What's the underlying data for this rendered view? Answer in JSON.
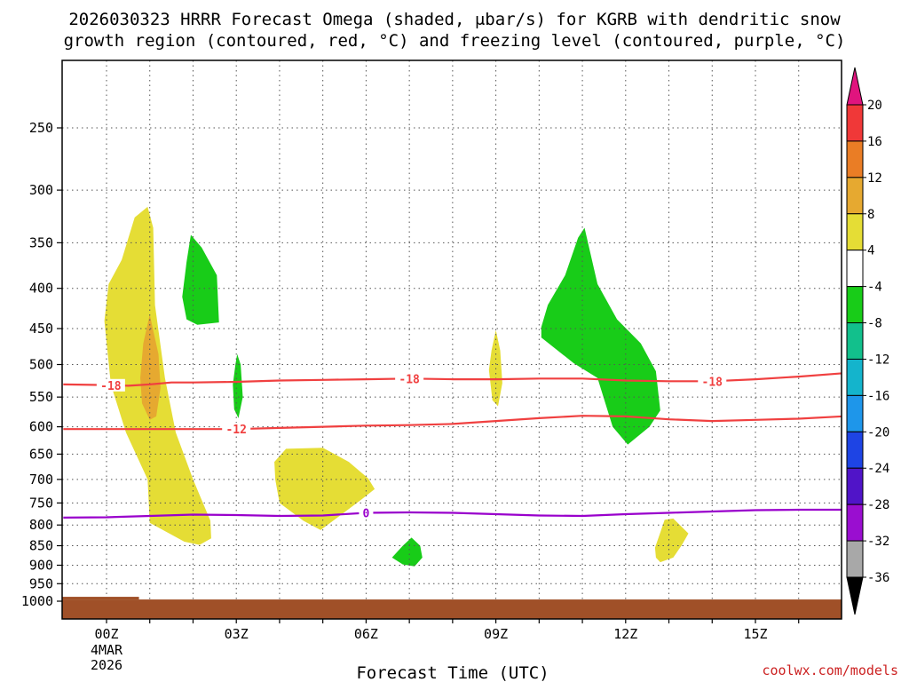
{
  "chart_data": {
    "type": "time-height",
    "title_line1": "2026030323 HRRR Forecast Omega (shaded, μbar/s) for KGRB with dendritic snow",
    "title_line2": "growth region (contoured, red, °C) and freezing level (contoured, purple, °C)",
    "xlabel": "Forecast Time (UTC)",
    "x_ticks": [
      {
        "hour": 0,
        "label": "00Z"
      },
      {
        "hour": 3,
        "label": "03Z"
      },
      {
        "hour": 6,
        "label": "06Z"
      },
      {
        "hour": 9,
        "label": "09Z"
      },
      {
        "hour": 12,
        "label": "12Z"
      },
      {
        "hour": 15,
        "label": "15Z"
      }
    ],
    "date_label_line1": "4MAR",
    "date_label_line2": "2026",
    "xlim": [
      -1,
      17
    ],
    "y_ticks": [
      250,
      300,
      350,
      400,
      450,
      500,
      550,
      600,
      650,
      700,
      750,
      800,
      850,
      900,
      950,
      1000
    ],
    "ylim_hpa": [
      200,
      1020
    ],
    "credit": "coolwx.com/models",
    "colorbar": {
      "labels": [
        "20",
        "16",
        "12",
        "8",
        "4",
        "-4",
        "-8",
        "-12",
        "-16",
        "-20",
        "-24",
        "-28",
        "-32",
        "-36"
      ],
      "bins": [
        {
          "lo": 16,
          "hi": 20,
          "color": "#f03838"
        },
        {
          "lo": 12,
          "hi": 16,
          "color": "#ea7d25"
        },
        {
          "lo": 8,
          "hi": 12,
          "color": "#e6a930"
        },
        {
          "lo": 4,
          "hi": 8,
          "color": "#e5dd35"
        },
        {
          "lo": -4,
          "hi": 4,
          "color": "#ffffff"
        },
        {
          "lo": -8,
          "hi": -4,
          "color": "#18cc18"
        },
        {
          "lo": -12,
          "hi": -8,
          "color": "#12c08c"
        },
        {
          "lo": -16,
          "hi": -12,
          "color": "#14b4cc"
        },
        {
          "lo": -20,
          "hi": -16,
          "color": "#1e96ea"
        },
        {
          "lo": -24,
          "hi": -20,
          "color": "#1e44e4"
        },
        {
          "lo": -28,
          "hi": -24,
          "color": "#5014c8"
        },
        {
          "lo": -32,
          "hi": -28,
          "color": "#9a0ed0"
        },
        {
          "lo": -36,
          "hi": -32,
          "color": "#a8a8a8"
        }
      ],
      "top_arrow_color": "#e0147e",
      "bottom_arrow_color": "#000000"
    },
    "omega_regions": [
      {
        "name": "yellow-plume-0z",
        "value": "4 to 8",
        "color": "#e5dd35",
        "points": [
          [
            -0.05,
            440
          ],
          [
            0.05,
            395
          ],
          [
            0.35,
            368
          ],
          [
            0.65,
            325
          ],
          [
            0.95,
            315
          ],
          [
            1.08,
            335
          ],
          [
            1.12,
            420
          ],
          [
            1.35,
            520
          ],
          [
            1.6,
            610
          ],
          [
            2.0,
            700
          ],
          [
            2.4,
            790
          ],
          [
            2.42,
            832
          ],
          [
            2.15,
            848
          ],
          [
            1.8,
            840
          ],
          [
            1.0,
            795
          ],
          [
            0.95,
            700
          ],
          [
            0.45,
            610
          ],
          [
            0.1,
            530
          ]
        ]
      },
      {
        "name": "orange-core-0z",
        "value": "8 to 12",
        "color": "#e6a930",
        "points": [
          [
            0.78,
            520
          ],
          [
            0.85,
            470
          ],
          [
            1.0,
            432
          ],
          [
            1.2,
            485
          ],
          [
            1.25,
            535
          ],
          [
            1.15,
            582
          ],
          [
            1.0,
            588
          ],
          [
            0.82,
            560
          ]
        ]
      },
      {
        "name": "green-blob-2z",
        "value": "-8 to -4",
        "color": "#18cc18",
        "points": [
          [
            1.75,
            410
          ],
          [
            1.85,
            370
          ],
          [
            1.95,
            342
          ],
          [
            2.2,
            355
          ],
          [
            2.55,
            385
          ],
          [
            2.6,
            442
          ],
          [
            2.1,
            445
          ],
          [
            1.85,
            438
          ]
        ]
      },
      {
        "name": "green-sliver-3z",
        "value": "-8 to -4",
        "color": "#18cc18",
        "points": [
          [
            2.92,
            530
          ],
          [
            2.98,
            500
          ],
          [
            3.02,
            485
          ],
          [
            3.1,
            500
          ],
          [
            3.15,
            550
          ],
          [
            3.05,
            585
          ],
          [
            2.95,
            570
          ]
        ]
      },
      {
        "name": "yellow-blob-4z",
        "value": "4 to 8",
        "color": "#e5dd35",
        "points": [
          [
            3.88,
            665
          ],
          [
            4.15,
            640
          ],
          [
            5.0,
            638
          ],
          [
            5.6,
            665
          ],
          [
            6.05,
            698
          ],
          [
            6.2,
            720
          ],
          [
            5.9,
            742
          ],
          [
            5.4,
            778
          ],
          [
            4.95,
            812
          ],
          [
            4.55,
            790
          ],
          [
            4.0,
            750
          ],
          [
            3.9,
            700
          ]
        ]
      },
      {
        "name": "green-blob-7z",
        "value": "-8 to -4",
        "color": "#18cc18",
        "points": [
          [
            6.6,
            880
          ],
          [
            6.85,
            850
          ],
          [
            7.05,
            830
          ],
          [
            7.25,
            850
          ],
          [
            7.3,
            880
          ],
          [
            7.12,
            903
          ],
          [
            6.85,
            898
          ]
        ]
      },
      {
        "name": "yellow-sliver-9z",
        "value": "4 to 8",
        "color": "#e5dd35",
        "points": [
          [
            8.84,
            508
          ],
          [
            8.9,
            480
          ],
          [
            9.0,
            452
          ],
          [
            9.1,
            480
          ],
          [
            9.15,
            528
          ],
          [
            9.05,
            565
          ],
          [
            8.92,
            555
          ]
        ]
      },
      {
        "name": "green-plume-11z",
        "value": "-8 to -4",
        "color": "#18cc18",
        "points": [
          [
            10.05,
            448
          ],
          [
            10.2,
            420
          ],
          [
            10.6,
            385
          ],
          [
            10.9,
            345
          ],
          [
            11.05,
            335
          ],
          [
            11.35,
            395
          ],
          [
            11.8,
            438
          ],
          [
            12.35,
            470
          ],
          [
            12.7,
            510
          ],
          [
            12.8,
            572
          ],
          [
            12.55,
            600
          ],
          [
            12.05,
            632
          ],
          [
            11.7,
            600
          ],
          [
            11.35,
            520
          ],
          [
            10.8,
            498
          ],
          [
            10.05,
            462
          ]
        ]
      },
      {
        "name": "yellow-blob-13z",
        "value": "4 to 8",
        "color": "#e5dd35",
        "points": [
          [
            12.68,
            855
          ],
          [
            12.8,
            818
          ],
          [
            12.9,
            788
          ],
          [
            13.1,
            785
          ],
          [
            13.45,
            820
          ],
          [
            13.3,
            848
          ],
          [
            13.1,
            880
          ],
          [
            12.8,
            892
          ],
          [
            12.7,
            880
          ]
        ]
      }
    ],
    "contours": [
      {
        "name": "dgz-top",
        "level_label": "-18",
        "color": "#f04040",
        "points": [
          [
            -1,
            530
          ],
          [
            0.0,
            531
          ],
          [
            0.5,
            532
          ],
          [
            1.0,
            530
          ],
          [
            1.5,
            527
          ],
          [
            2.0,
            527
          ],
          [
            3.0,
            526
          ],
          [
            4.0,
            524
          ],
          [
            5.0,
            523
          ],
          [
            6.0,
            522
          ],
          [
            7.0,
            521
          ],
          [
            8.0,
            522
          ],
          [
            9.0,
            522
          ],
          [
            10.0,
            521
          ],
          [
            11.0,
            521
          ],
          [
            12.0,
            524
          ],
          [
            13.0,
            525
          ],
          [
            14.0,
            525
          ],
          [
            15.0,
            522
          ],
          [
            16.0,
            518
          ],
          [
            17.0,
            513
          ]
        ],
        "labels_at": [
          0.1,
          7.0,
          14.0
        ]
      },
      {
        "name": "dgz-bottom",
        "level_label": "-12",
        "color": "#f04040",
        "points": [
          [
            -1,
            604
          ],
          [
            0.0,
            604
          ],
          [
            1.0,
            604
          ],
          [
            2.0,
            604
          ],
          [
            3.0,
            604
          ],
          [
            4.0,
            602
          ],
          [
            5.0,
            600
          ],
          [
            6.0,
            598
          ],
          [
            7.0,
            597
          ],
          [
            8.0,
            595
          ],
          [
            9.0,
            590
          ],
          [
            10.0,
            585
          ],
          [
            11.0,
            581
          ],
          [
            12.0,
            582
          ],
          [
            13.0,
            587
          ],
          [
            14.0,
            590
          ],
          [
            15.0,
            588
          ],
          [
            16.0,
            586
          ],
          [
            17.0,
            582
          ]
        ],
        "labels_at": [
          3.0
        ]
      },
      {
        "name": "freezing-level",
        "level_label": "0",
        "color": "#9900cc",
        "points": [
          [
            -1,
            783
          ],
          [
            0.0,
            782
          ],
          [
            1.0,
            779
          ],
          [
            2.0,
            776
          ],
          [
            3.0,
            777
          ],
          [
            4.0,
            779
          ],
          [
            5.0,
            778
          ],
          [
            6.0,
            772
          ],
          [
            7.0,
            771
          ],
          [
            8.0,
            772
          ],
          [
            9.0,
            775
          ],
          [
            10.0,
            778
          ],
          [
            11.0,
            779
          ],
          [
            12.0,
            775
          ],
          [
            13.0,
            772
          ],
          [
            14.0,
            769
          ],
          [
            15.0,
            766
          ],
          [
            16.0,
            765
          ],
          [
            17.0,
            765
          ]
        ],
        "labels_at": [
          6.0
        ]
      }
    ],
    "ground": {
      "color": "#a05028",
      "top_hpa": 995
    }
  }
}
